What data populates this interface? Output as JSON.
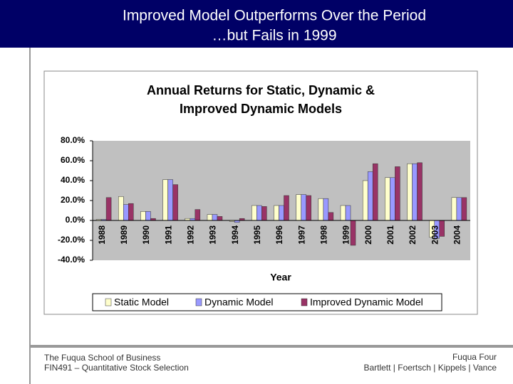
{
  "slide": {
    "title": [
      "Improved Model Outperforms Over the Period",
      "…but Fails in 1999"
    ],
    "footer_left": [
      "The Fuqua School of Business",
      "FIN491 – Quantitative Stock Selection"
    ],
    "footer_right": [
      "Fuqua Four",
      "Bartlett | Foertsch | Kippels | Vance"
    ]
  },
  "chart_data": {
    "type": "bar",
    "title": [
      "Annual Returns for Static, Dynamic &",
      "Improved Dynamic Models"
    ],
    "x_label": "Year",
    "categories": [
      "1988",
      "1989",
      "1990",
      "1991",
      "1992",
      "1993",
      "1994",
      "1995",
      "1996",
      "1997",
      "1998",
      "1999",
      "2000",
      "2001",
      "2002",
      "2003",
      "2004"
    ],
    "series": [
      {
        "name": "Static Model",
        "color": "#ffffcc",
        "values": [
          1,
          24,
          9,
          41,
          2,
          6,
          -1,
          15,
          15,
          26,
          22,
          15,
          40,
          43,
          57,
          -17,
          23
        ]
      },
      {
        "name": "Dynamic Model",
        "color": "#9999ff",
        "values": [
          1,
          16,
          9,
          41,
          2,
          6,
          -2,
          15,
          15,
          26,
          22,
          15,
          49,
          43,
          57,
          -18,
          23
        ]
      },
      {
        "name": "Improved Dynamic Model",
        "color": "#993366",
        "values": [
          23,
          17,
          2,
          36,
          11,
          4,
          2,
          14,
          25,
          25,
          8,
          -25,
          57,
          54,
          58,
          -16,
          23
        ]
      }
    ],
    "ylim": [
      -40,
      80
    ],
    "yticks": [
      {
        "value": -40,
        "label": "-40.0%"
      },
      {
        "value": -20,
        "label": "-20.0%"
      },
      {
        "value": 0,
        "label": "0.0%"
      },
      {
        "value": 20,
        "label": "20.0%"
      },
      {
        "value": 40,
        "label": "40.0%"
      },
      {
        "value": 60,
        "label": "60.0%"
      },
      {
        "value": 80,
        "label": "80.0%"
      }
    ],
    "legend": "bottom",
    "plot_background": "#c0c0c0"
  }
}
